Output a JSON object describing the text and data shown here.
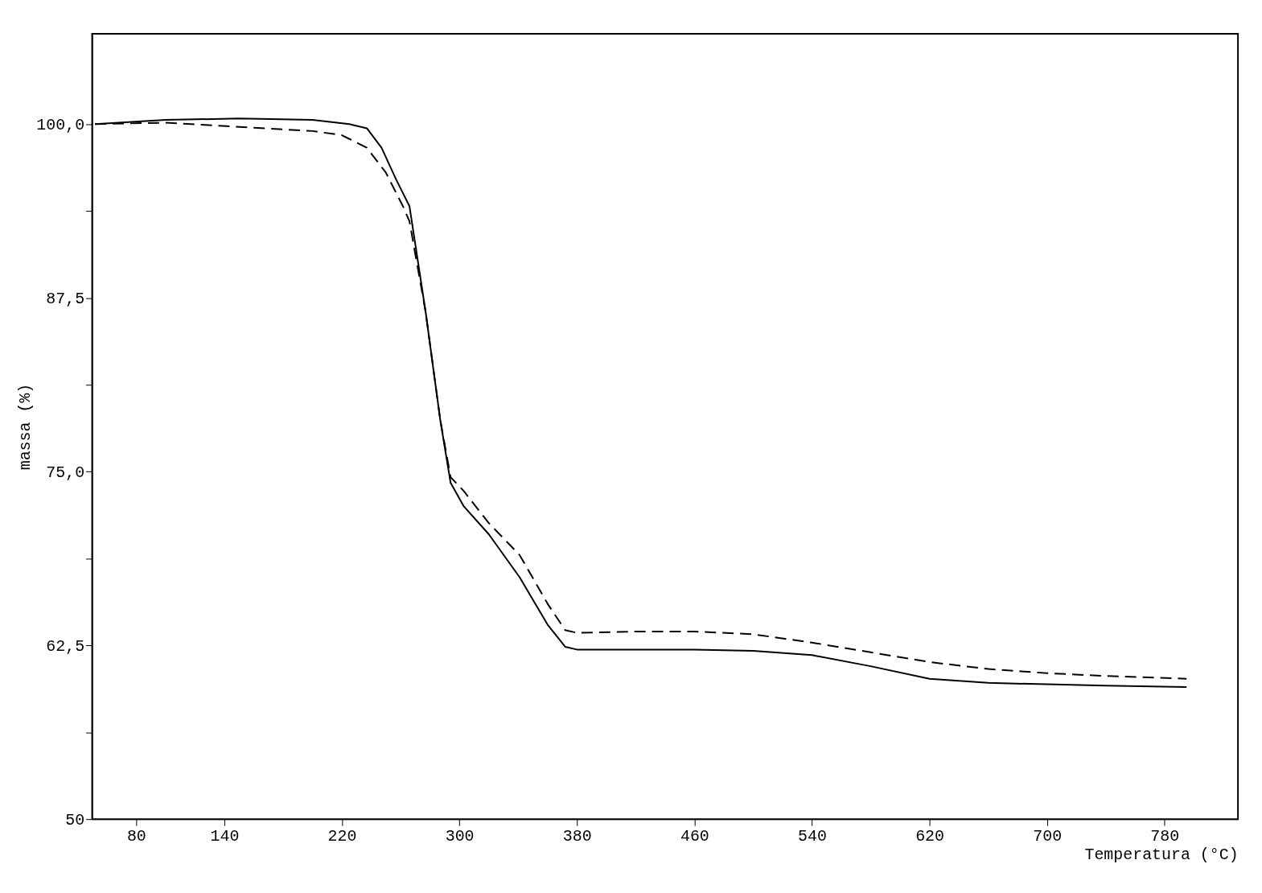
{
  "chart_data": {
    "type": "line",
    "xlabel": "Temperatura (°C)",
    "ylabel": "massa (%)",
    "xlim": [
      50,
      830
    ],
    "xticks": [
      80,
      140,
      220,
      300,
      380,
      460,
      540,
      620,
      700,
      780
    ],
    "ylim": [
      50,
      106.5
    ],
    "yticks": [
      {
        "value": 50,
        "label": "50"
      },
      {
        "value": 56.25,
        "label": null
      },
      {
        "value": 62.5,
        "label": "62,5"
      },
      {
        "value": 68.75,
        "label": null
      },
      {
        "value": 75,
        "label": "75,0"
      },
      {
        "value": 81.25,
        "label": null
      },
      {
        "value": 87.5,
        "label": "87,5"
      },
      {
        "value": 93.75,
        "label": null
      },
      {
        "value": 100,
        "label": "100,0"
      }
    ],
    "grid": false,
    "series": [
      {
        "color": "#000000",
        "line_style": "solid",
        "x": [
          52,
          100,
          150,
          200,
          225,
          237,
          247,
          257,
          266,
          277,
          287,
          294,
          303,
          320,
          341,
          360,
          372,
          380,
          420,
          460,
          500,
          540,
          580,
          620,
          660,
          700,
          740,
          795
        ],
        "values": [
          100,
          100.3,
          100.4,
          100.3,
          100,
          99.7,
          98.3,
          96,
          94.1,
          86.5,
          78.7,
          74.2,
          72.5,
          70.5,
          67.4,
          64,
          62.4,
          62.2,
          62.2,
          62.2,
          62.1,
          61.8,
          61,
          60.1,
          59.8,
          59.7,
          59.6,
          59.5
        ]
      },
      {
        "color": "#000000",
        "line_style": "dashed",
        "x": [
          52,
          100,
          150,
          200,
          220,
          237,
          250,
          262,
          266,
          277,
          287,
          294,
          303,
          320,
          341,
          360,
          372,
          380,
          420,
          460,
          500,
          540,
          580,
          620,
          660,
          700,
          740,
          795
        ],
        "values": [
          100,
          100.1,
          99.8,
          99.5,
          99.2,
          98.3,
          96.5,
          94,
          93,
          86.5,
          78.7,
          74.6,
          73.6,
          71.3,
          69,
          65.5,
          63.6,
          63.4,
          63.5,
          63.5,
          63.3,
          62.7,
          62,
          61.3,
          60.8,
          60.5,
          60.3,
          60.1
        ]
      }
    ]
  }
}
